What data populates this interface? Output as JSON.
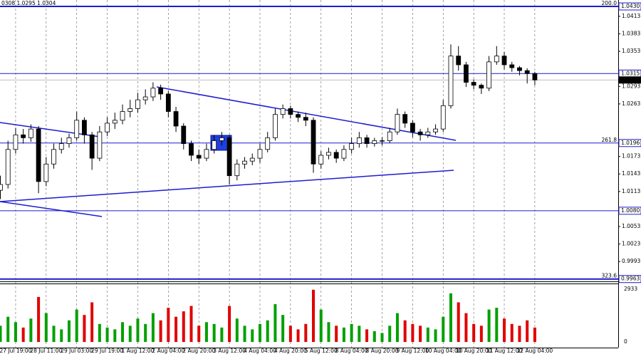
{
  "chart_data": {
    "type": "candlestick",
    "header": "0308 1.0295 1.0304",
    "categories": [
      null,
      null,
      "27 Jul 19:00",
      null,
      null,
      null,
      "28 Jul 11:00",
      null,
      null,
      null,
      "29 Jul 03:00",
      null,
      null,
      null,
      "29 Jul 19:00",
      null,
      null,
      null,
      "1 Aug 12:00",
      null,
      null,
      null,
      "2 Aug 04:00",
      null,
      null,
      null,
      "2 Aug 20:00",
      null,
      null,
      null,
      "3 Aug 12:00",
      null,
      null,
      null,
      "4 Aug 04:00",
      null,
      null,
      null,
      "4 Aug 20:00",
      null,
      null,
      null,
      "5 Aug 12:00",
      null,
      null,
      null,
      "8 Aug 04:00",
      null,
      null,
      null,
      "8 Aug 20:00",
      null,
      null,
      null,
      "9 Aug 12:00",
      null,
      null,
      null,
      "10 Aug 04:00",
      null,
      null,
      null,
      "10 Aug 20:00",
      null,
      null,
      null,
      "11 Aug 12:00",
      null,
      null,
      null,
      "12 Aug 04:00"
    ],
    "open": [
      1.0115,
      1.0125,
      1.0185,
      1.021,
      1.0205,
      1.022,
      1.013,
      1.016,
      1.0185,
      1.0195,
      1.0205,
      1.0235,
      1.021,
      1.017,
      1.0215,
      1.023,
      1.0235,
      1.025,
      1.0255,
      1.027,
      1.0275,
      1.029,
      1.028,
      1.025,
      1.0225,
      1.0195,
      1.0175,
      1.017,
      1.0185,
      1.02,
      1.0205,
      1.014,
      1.016,
      1.0165,
      1.017,
      1.0185,
      1.0205,
      1.0245,
      1.0255,
      1.0245,
      1.024,
      1.0235,
      1.016,
      1.0175,
      1.018,
      1.017,
      1.0185,
      1.0195,
      1.0205,
      1.0195,
      1.02,
      1.02,
      1.0215,
      1.0245,
      1.023,
      1.0215,
      1.021,
      1.0215,
      1.022,
      1.026,
      1.0345,
      1.033,
      1.03,
      1.0295,
      1.029,
      1.0335,
      1.0345,
      1.033,
      1.0325,
      1.032,
      1.0315
    ],
    "high": [
      1.014,
      1.02,
      1.0222,
      1.022,
      1.0228,
      1.0225,
      1.0172,
      1.0195,
      1.0205,
      1.0212,
      1.025,
      1.024,
      1.0215,
      1.0225,
      1.024,
      1.0248,
      1.0262,
      1.027,
      1.0282,
      1.0288,
      1.03,
      1.0296,
      1.0285,
      1.0258,
      1.023,
      1.02,
      1.0185,
      1.0195,
      1.021,
      1.0215,
      1.021,
      1.0168,
      1.0172,
      1.0178,
      1.0195,
      1.0215,
      1.0255,
      1.0262,
      1.026,
      1.025,
      1.0248,
      1.024,
      1.0182,
      1.0188,
      1.0185,
      1.0192,
      1.0205,
      1.0215,
      1.021,
      1.0205,
      1.0206,
      1.0222,
      1.0255,
      1.025,
      1.0235,
      1.022,
      1.0222,
      1.0228,
      1.027,
      1.0365,
      1.0362,
      1.0335,
      1.0305,
      1.0298,
      1.0345,
      1.0362,
      1.0352,
      1.0335,
      1.0328,
      1.0324,
      1.0318
    ],
    "low": [
      1.01,
      1.0118,
      1.0178,
      1.0195,
      1.0198,
      1.011,
      1.0122,
      1.0152,
      1.0178,
      1.0188,
      1.02,
      1.0195,
      1.015,
      1.0165,
      1.0208,
      1.022,
      1.0228,
      1.024,
      1.0248,
      1.0262,
      1.0268,
      1.027,
      1.024,
      1.0215,
      1.0185,
      1.0165,
      1.016,
      1.0165,
      1.0178,
      1.0192,
      1.0125,
      1.0132,
      1.0152,
      1.0158,
      1.0162,
      1.018,
      1.02,
      1.0238,
      1.0238,
      1.0232,
      1.0225,
      1.0145,
      1.0152,
      1.0168,
      1.0162,
      1.0165,
      1.0178,
      1.0188,
      1.0188,
      1.019,
      1.0192,
      1.0196,
      1.021,
      1.0222,
      1.0206,
      1.02,
      1.0205,
      1.021,
      1.0215,
      1.0255,
      1.032,
      1.0292,
      1.0288,
      1.028,
      1.0285,
      1.033,
      1.0322,
      1.0318,
      1.0312,
      1.0298,
      1.0295
    ],
    "close": [
      1.0125,
      1.0185,
      1.021,
      1.0205,
      1.022,
      1.013,
      1.016,
      1.0185,
      1.0195,
      1.0205,
      1.0235,
      1.021,
      1.017,
      1.0215,
      1.023,
      1.0235,
      1.025,
      1.0255,
      1.027,
      1.0275,
      1.029,
      1.028,
      1.025,
      1.0225,
      1.0195,
      1.0175,
      1.017,
      1.0185,
      1.02,
      1.0205,
      1.014,
      1.016,
      1.0165,
      1.017,
      1.0185,
      1.0205,
      1.0245,
      1.0255,
      1.0245,
      1.024,
      1.0235,
      1.016,
      1.0175,
      1.018,
      1.017,
      1.0185,
      1.0195,
      1.0205,
      1.0195,
      1.02,
      1.02,
      1.0215,
      1.0245,
      1.023,
      1.0215,
      1.021,
      1.0215,
      1.022,
      1.026,
      1.0345,
      1.033,
      1.03,
      1.0295,
      1.029,
      1.0335,
      1.0345,
      1.033,
      1.0325,
      1.032,
      1.0315,
      1.0304
    ],
    "volume": [
      900,
      1400,
      1100,
      800,
      1300,
      2500,
      1600,
      900,
      700,
      1200,
      1800,
      1500,
      2200,
      1000,
      800,
      700,
      1100,
      900,
      1300,
      1000,
      1600,
      1200,
      1900,
      1400,
      1700,
      2000,
      900,
      1100,
      1000,
      800,
      2000,
      1300,
      900,
      700,
      1000,
      1200,
      2100,
      1500,
      900,
      700,
      1000,
      2900,
      1800,
      1100,
      900,
      800,
      1000,
      900,
      700,
      600,
      500,
      900,
      1600,
      1200,
      1000,
      900,
      800,
      700,
      1400,
      2700,
      2200,
      1600,
      1000,
      900,
      1800,
      1900,
      1300,
      1000,
      900,
      1200,
      800
    ],
    "up_color": "#ffffff",
    "down_color": "#000000",
    "candle_edge": "#000000",
    "volume_up_color": "#00a000",
    "volume_down_color": "#e00000",
    "ylim": [
      0.9959,
      1.0441
    ],
    "yticks": [
      1.0413,
      1.0383,
      1.0353,
      1.0293,
      1.0263,
      1.0173,
      1.0143,
      1.0113,
      1.0053,
      1.0023,
      0.9993
    ],
    "levels": [
      {
        "value": 1.043,
        "label": "1.0430",
        "tag": "200.0"
      },
      {
        "value": 1.0315,
        "label": "1.0315"
      },
      {
        "value": 1.0196,
        "label": "1.0196",
        "tag": "261.8"
      },
      {
        "value": 1.008,
        "label": "1.0080"
      },
      {
        "value": 0.9963,
        "label": "0.9963",
        "tag": "323.6"
      }
    ],
    "level_color": "#1c1cd0",
    "last_price": {
      "value": 1.0304,
      "label": "1.0304"
    },
    "vlim": [
      -313,
      3207
    ],
    "vticks": [
      0,
      2933
    ]
  }
}
